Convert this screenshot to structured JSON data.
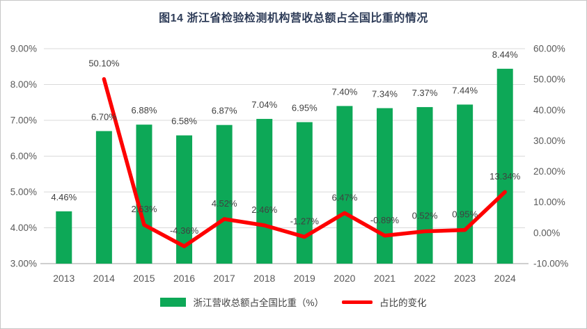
{
  "chart_data": {
    "type": "combo-bar-line",
    "title": "图14  浙江省检验检测机构营收总额占全国比重的情况",
    "categories": [
      "2013",
      "2014",
      "2015",
      "2016",
      "2017",
      "2018",
      "2019",
      "2020",
      "2021",
      "2022",
      "2023",
      "2024"
    ],
    "series": [
      {
        "name": "浙江营收总额占全国比重（%）",
        "type": "bar",
        "axis": "left",
        "color": "#0da857",
        "values": [
          4.46,
          6.7,
          6.88,
          6.58,
          6.87,
          7.04,
          6.95,
          7.4,
          7.34,
          7.37,
          7.44,
          8.44
        ],
        "labels": [
          "4.46%",
          "6.70%",
          "6.88%",
          "6.58%",
          "6.87%",
          "7.04%",
          "6.95%",
          "7.40%",
          "7.34%",
          "7.37%",
          "7.44%",
          "8.44%"
        ]
      },
      {
        "name": "占比的变化",
        "type": "line",
        "axis": "right",
        "color": "#fe0000",
        "values": [
          null,
          50.1,
          2.63,
          -4.36,
          4.52,
          2.46,
          -1.27,
          6.47,
          -0.89,
          0.52,
          0.95,
          13.34
        ],
        "labels": [
          null,
          "50.10%",
          "2.63%",
          "-4.36%",
          "4.52%",
          "2.46%",
          "-1.27%",
          "6.47%",
          "-0.89%",
          "0.52%",
          "0.95%",
          "13.34%"
        ]
      }
    ],
    "left_axis": {
      "min": 3,
      "max": 9,
      "step": 1,
      "tick_labels": [
        "3.00%",
        "4.00%",
        "5.00%",
        "6.00%",
        "7.00%",
        "8.00%",
        "9.00%"
      ]
    },
    "right_axis": {
      "min": -10,
      "max": 60,
      "step": 10,
      "tick_labels": [
        "-10.00%",
        "0.00%",
        "10.00%",
        "20.00%",
        "30.00%",
        "40.00%",
        "50.00%",
        "60.00%"
      ]
    },
    "grid": "horizontal",
    "legend_position": "bottom",
    "gridline_color": "#d9d9d9",
    "axisline_color": "#bfbfbf"
  }
}
